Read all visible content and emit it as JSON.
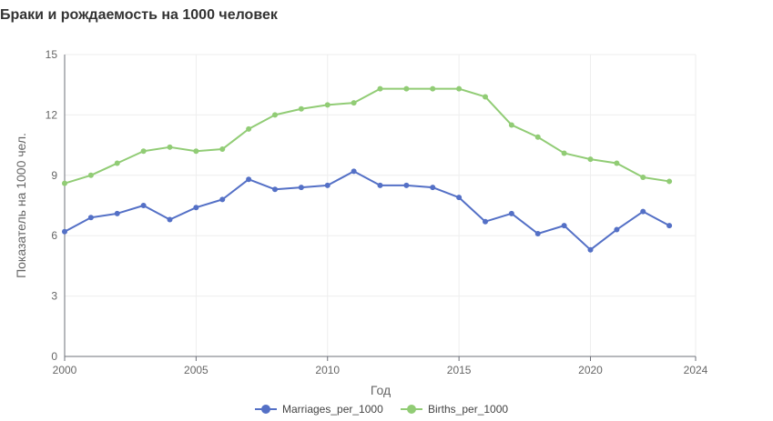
{
  "chart_data": {
    "type": "line",
    "title": "Браки и рождаемость на 1000 человек",
    "xlabel": "Год",
    "ylabel": "Показатель на 1000 чел.",
    "xlim": [
      2000,
      2024
    ],
    "ylim": [
      0,
      15
    ],
    "x_ticks": [
      2000,
      2005,
      2010,
      2015,
      2020,
      2024
    ],
    "y_ticks": [
      0,
      3,
      6,
      9,
      12,
      15
    ],
    "grid": true,
    "legend_position": "bottom",
    "x": [
      2000,
      2001,
      2002,
      2003,
      2004,
      2005,
      2006,
      2007,
      2008,
      2009,
      2010,
      2011,
      2012,
      2013,
      2014,
      2015,
      2016,
      2017,
      2018,
      2019,
      2020,
      2021,
      2022,
      2023
    ],
    "series": [
      {
        "name": "Marriages_per_1000",
        "color": "#5470c6",
        "values": [
          6.2,
          6.9,
          7.1,
          7.5,
          6.8,
          7.4,
          7.8,
          8.8,
          8.3,
          8.4,
          8.5,
          9.2,
          8.5,
          8.5,
          8.4,
          7.9,
          6.7,
          7.1,
          6.1,
          6.5,
          5.3,
          6.3,
          7.2,
          6.5
        ]
      },
      {
        "name": "Births_per_1000",
        "color": "#91cc75",
        "values": [
          8.6,
          9.0,
          9.6,
          10.2,
          10.4,
          10.2,
          10.3,
          11.3,
          12.0,
          12.3,
          12.5,
          12.6,
          13.3,
          13.3,
          13.3,
          13.3,
          12.9,
          11.5,
          10.9,
          10.1,
          9.8,
          9.6,
          8.9,
          8.7
        ]
      }
    ]
  }
}
